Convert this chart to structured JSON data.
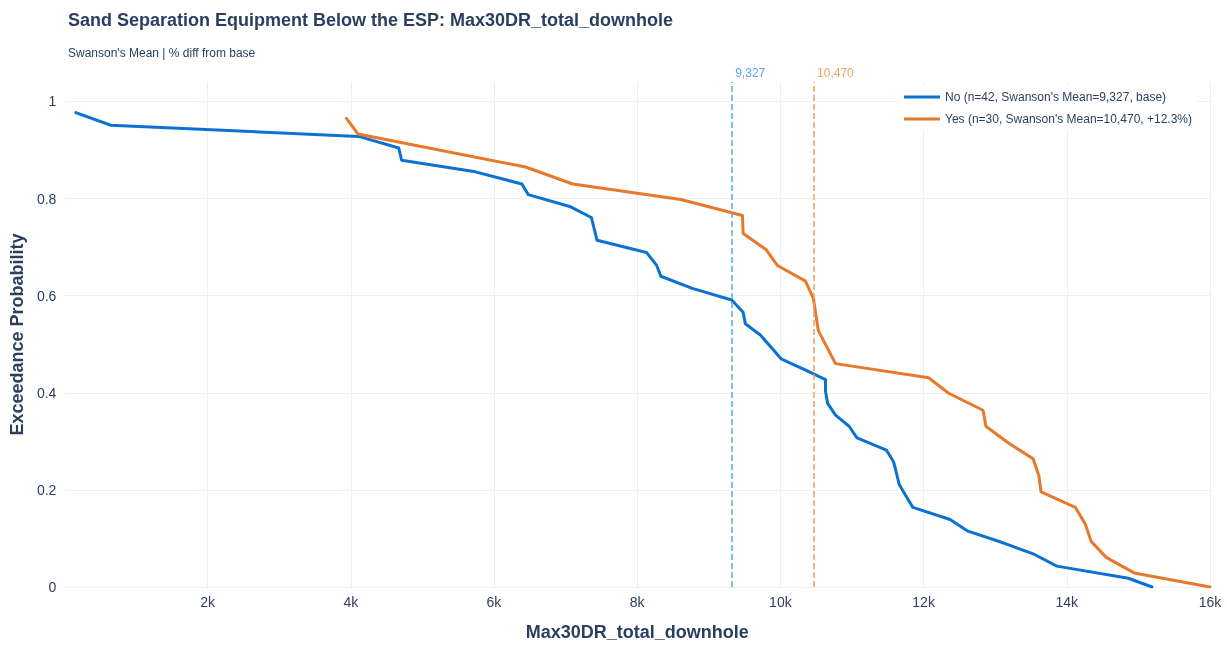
{
  "chart_data": {
    "type": "line",
    "title": "Sand Separation Equipment Below the ESP: Max30DR_total_downhole",
    "subtitle": "Swanson's Mean | % diff from base",
    "xlabel": "Max30DR_total_downhole",
    "ylabel": "Exceedance Probability",
    "xlim": [
      0,
      16000
    ],
    "xticks": [
      {
        "value": 2000,
        "label": "2k"
      },
      {
        "value": 4000,
        "label": "4k"
      },
      {
        "value": 6000,
        "label": "6k"
      },
      {
        "value": 8000,
        "label": "8k"
      },
      {
        "value": 10000,
        "label": "10k"
      },
      {
        "value": 12000,
        "label": "12k"
      },
      {
        "value": 14000,
        "label": "14k"
      },
      {
        "value": 16000,
        "label": "16k"
      }
    ],
    "ylim": [
      0,
      1.04
    ],
    "yticks": [
      0,
      0.2,
      0.4,
      0.6,
      0.8,
      1
    ],
    "series": [
      {
        "name": "No (n=42, Swanson's Mean=9,327, base)",
        "color": "#0b72d1",
        "x": [
          160,
          650,
          4110,
          4670,
          4710,
          5740,
          6390,
          6480,
          7070,
          7360,
          7440,
          8130,
          8270,
          8330,
          8770,
          9320,
          9480,
          9510,
          9720,
          10010,
          10360,
          10630,
          10630,
          10660,
          10770,
          10960,
          11070,
          11480,
          11580,
          11620,
          11660,
          11760,
          11850,
          12370,
          12620,
          13130,
          13550,
          13860,
          14860,
          15190
        ],
        "values": [
          0.977,
          0.951,
          0.928,
          0.904,
          0.879,
          0.855,
          0.83,
          0.808,
          0.783,
          0.761,
          0.714,
          0.689,
          0.663,
          0.64,
          0.615,
          0.591,
          0.566,
          0.542,
          0.519,
          0.47,
          0.446,
          0.427,
          0.403,
          0.378,
          0.354,
          0.331,
          0.307,
          0.282,
          0.258,
          0.235,
          0.211,
          0.186,
          0.164,
          0.139,
          0.115,
          0.09,
          0.067,
          0.043,
          0.018,
          0
        ]
      },
      {
        "name": "Yes (n=30, Swanson's Mean=10,470, +12.3%)",
        "color": "#e8782a",
        "x": [
          3940,
          4100,
          6440,
          7100,
          8610,
          9470,
          9480,
          9800,
          9960,
          10350,
          10460,
          10530,
          10770,
          12070,
          12350,
          12830,
          12870,
          13180,
          13530,
          13610,
          13640,
          14120,
          14260,
          14340,
          14550,
          14940,
          16000
        ],
        "values": [
          0.965,
          0.933,
          0.865,
          0.83,
          0.798,
          0.765,
          0.728,
          0.695,
          0.662,
          0.63,
          0.595,
          0.528,
          0.46,
          0.431,
          0.399,
          0.364,
          0.331,
          0.297,
          0.264,
          0.229,
          0.196,
          0.164,
          0.129,
          0.094,
          0.061,
          0.029,
          0
        ]
      }
    ],
    "ref_lines": [
      {
        "axis": "x",
        "value": 9327,
        "label": "9,327",
        "color": "#5aa9e6",
        "line_style": "dashed"
      },
      {
        "axis": "x",
        "value": 10470,
        "label": "10,470",
        "color": "#f0a060",
        "line_style": "dashed"
      }
    ],
    "grid": true,
    "legend": "top right",
    "marker": "none",
    "line_style": "solid"
  }
}
